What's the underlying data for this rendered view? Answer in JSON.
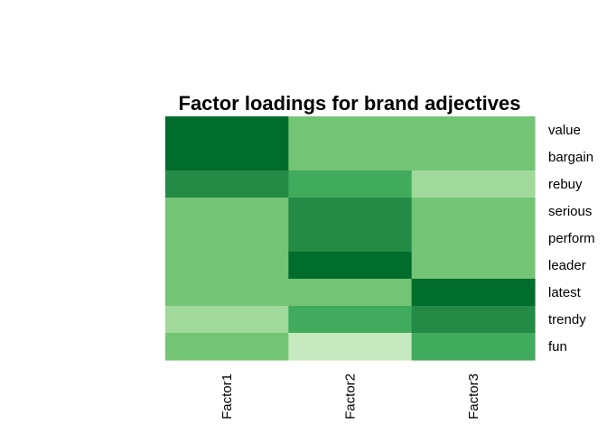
{
  "chart_data": {
    "type": "heatmap",
    "title": "Factor loadings for brand adjectives",
    "columns": [
      "Factor1",
      "Factor2",
      "Factor3"
    ],
    "rows": [
      "value",
      "bargain",
      "rebuy",
      "serious",
      "perform",
      "leader",
      "latest",
      "trendy",
      "fun"
    ],
    "values": [
      [
        5,
        2,
        2
      ],
      [
        5,
        2,
        2
      ],
      [
        4,
        3,
        1
      ],
      [
        2,
        4,
        2
      ],
      [
        2,
        4,
        2
      ],
      [
        2,
        5,
        2
      ],
      [
        2,
        2,
        5
      ],
      [
        1,
        3,
        4
      ],
      [
        2,
        0,
        3
      ]
    ],
    "palette": [
      "#c7e9c0",
      "#a1d99b",
      "#74c476",
      "#41ab5d",
      "#238b45",
      "#006d2c",
      "#00441b"
    ],
    "legend": "none",
    "grid": false
  }
}
